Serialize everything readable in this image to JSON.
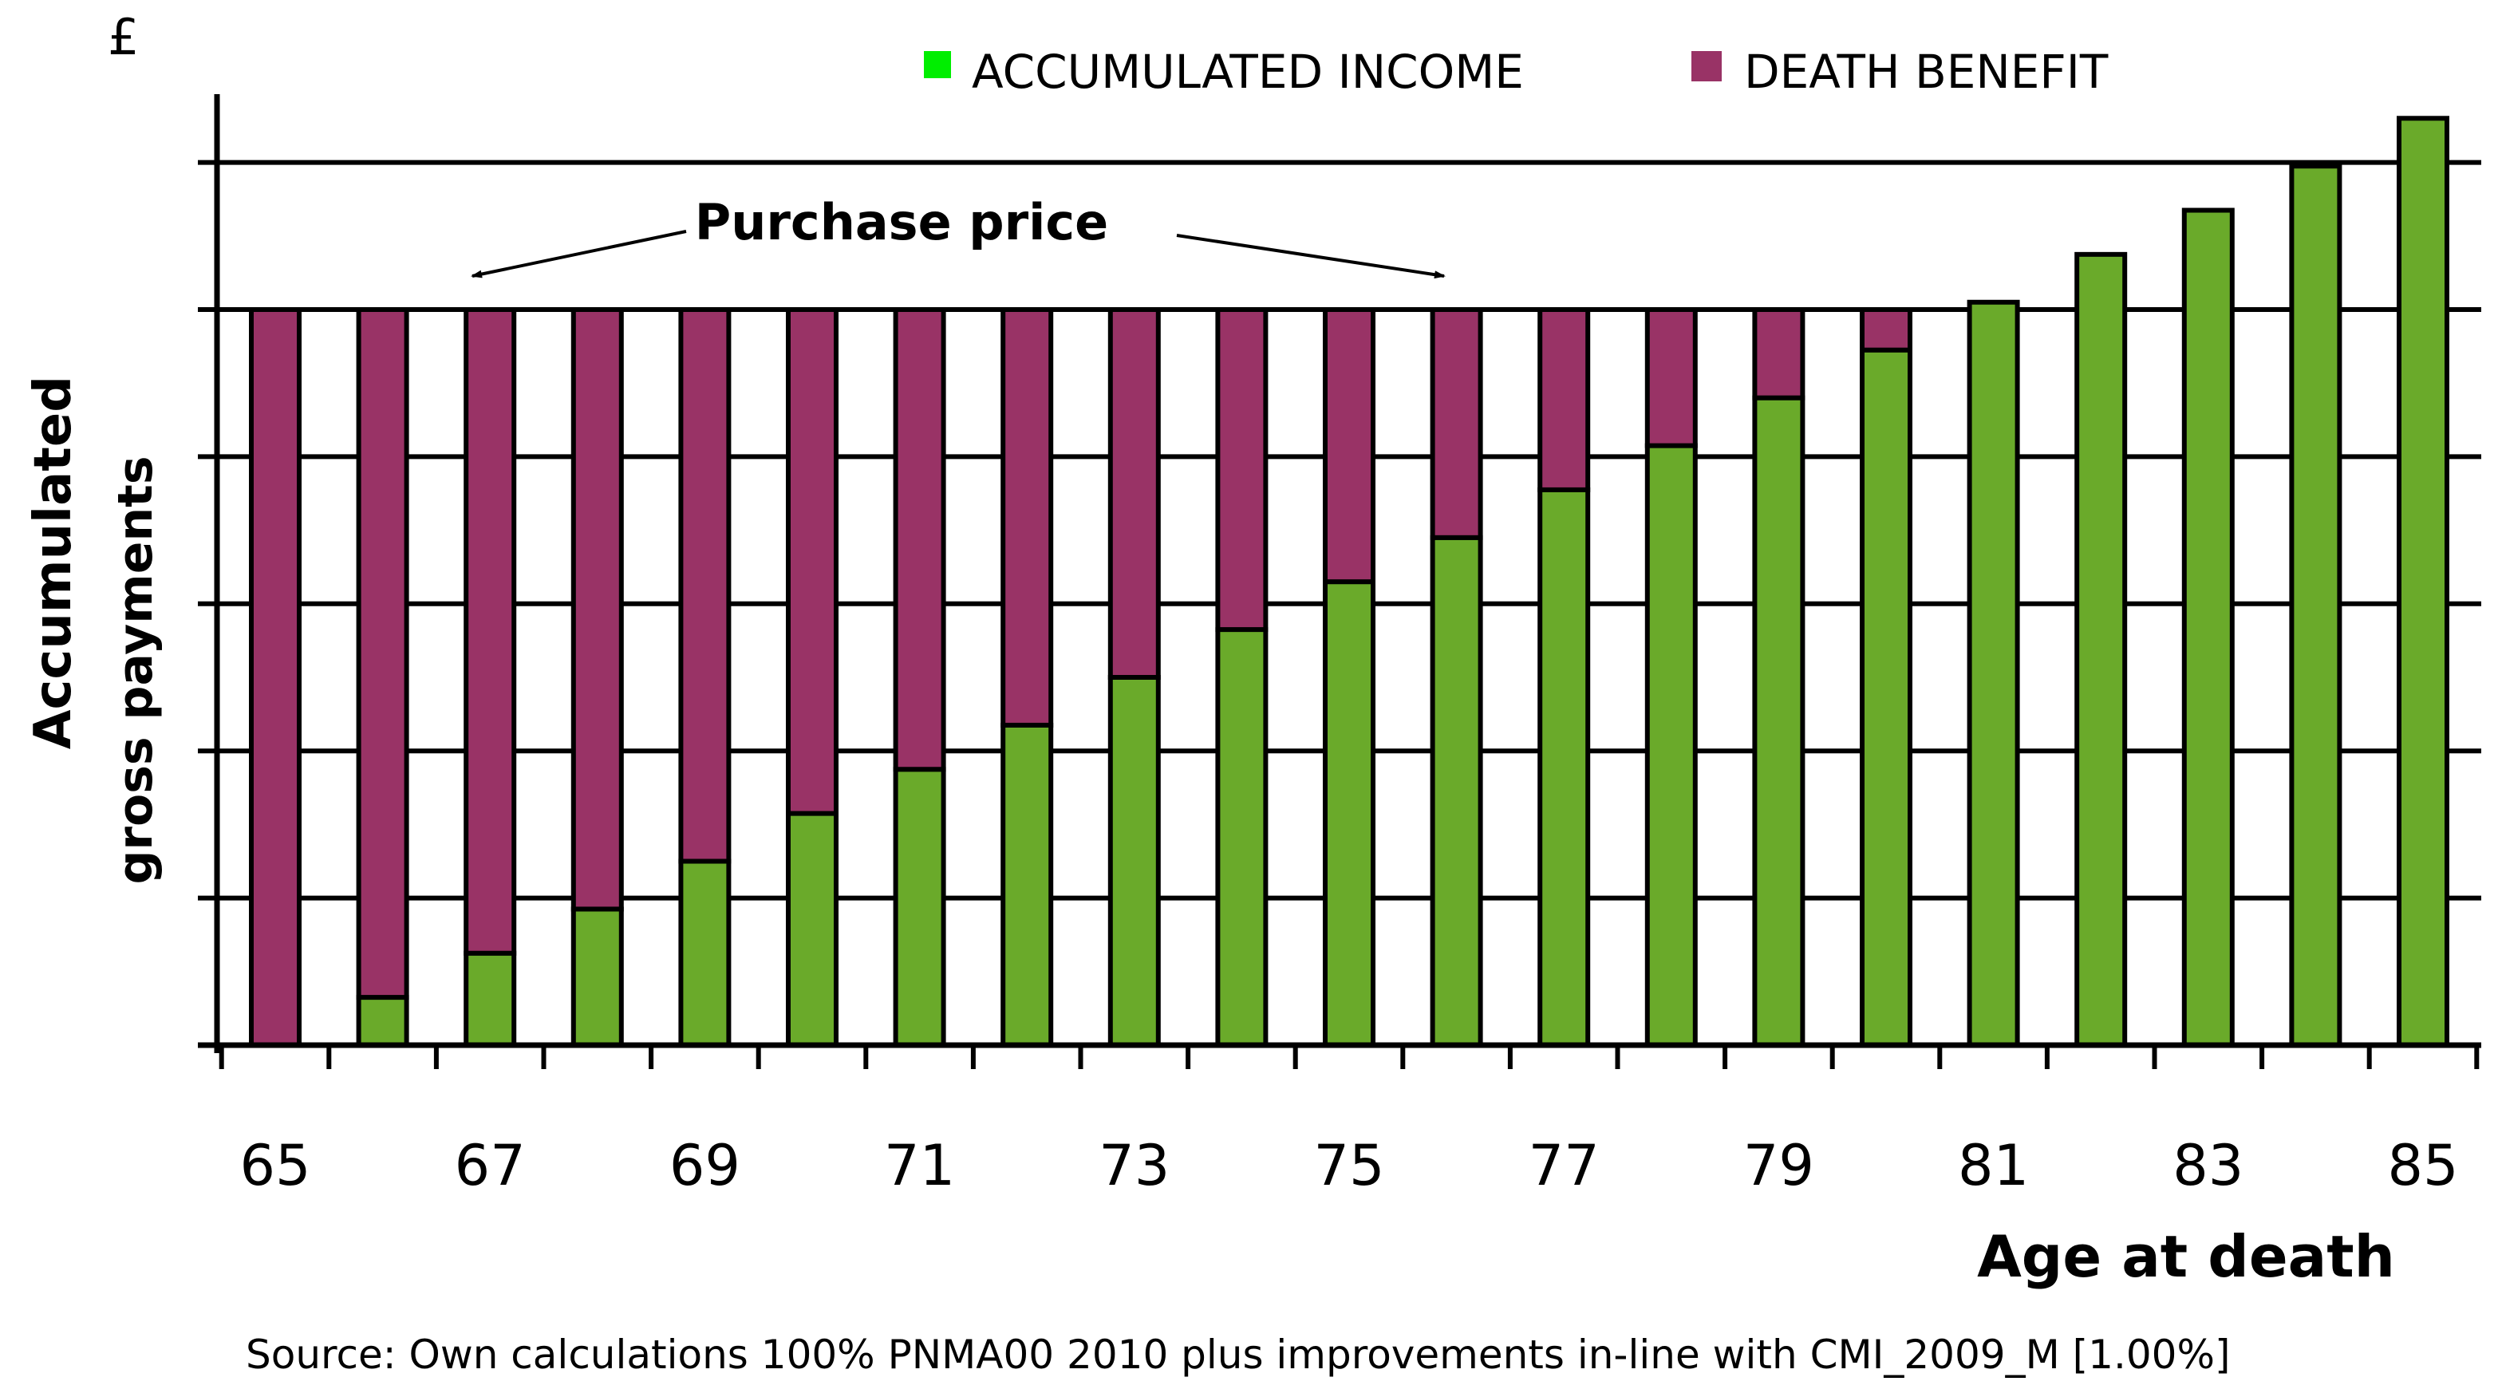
{
  "chart_data": {
    "type": "bar",
    "stacked": true,
    "currency_symbol": "£",
    "ylabel_line1": "Accumulated",
    "ylabel_line2": "gross payments",
    "xlabel": "Age at death",
    "source": "Source: Own calculations 100% PNMA00 2010 plus improvements in-line with CMI_2009_M [1.00%]",
    "annotation": "Purchase price",
    "purchase_price": 100,
    "ylim": [
      0,
      126
    ],
    "gridlines": [
      20,
      40,
      60,
      80,
      100,
      120
    ],
    "x_tick_labels": [
      "65",
      "67",
      "69",
      "71",
      "73",
      "75",
      "77",
      "79",
      "81",
      "83",
      "85"
    ],
    "categories": [
      "65",
      "66",
      "67",
      "68",
      "69",
      "70",
      "71",
      "72",
      "73",
      "74",
      "75",
      "76",
      "77",
      "78",
      "79",
      "80",
      "81",
      "82",
      "83",
      "84",
      "85"
    ],
    "series": [
      {
        "name": "ACCUMULATED INCOME",
        "color": "#6aaa2a",
        "legend_color": "#00ee00",
        "values": [
          0,
          6.5,
          12.5,
          18.5,
          25,
          31.5,
          37.5,
          43.5,
          50,
          56.5,
          63,
          69,
          75.5,
          81.5,
          88,
          94.5,
          101,
          107.5,
          113.5,
          119.5,
          126
        ]
      },
      {
        "name": "DEATH BENEFIT",
        "color": "#993366",
        "legend_color": "#993366",
        "values": [
          100,
          93.5,
          87.5,
          81.5,
          75,
          68.5,
          62.5,
          56.5,
          50,
          43.5,
          37,
          31,
          24.5,
          18.5,
          12,
          5.5,
          0,
          0,
          0,
          0,
          0
        ]
      }
    ]
  }
}
